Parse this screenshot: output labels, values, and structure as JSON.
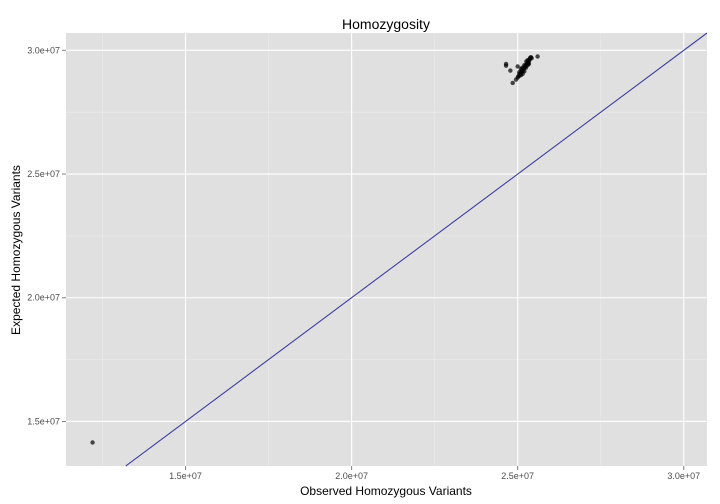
{
  "chart_data": {
    "type": "scatter",
    "title": "Homozygosity",
    "xlabel": "Observed Homozygous Variants",
    "ylabel": "Expected Homozygous Variants",
    "xlim": [
      11400000,
      30700000
    ],
    "ylim": [
      13200000,
      30700000
    ],
    "x_ticks": [
      {
        "value": 15000000,
        "label": "1.5e+07"
      },
      {
        "value": 20000000,
        "label": "2.0e+07"
      },
      {
        "value": 25000000,
        "label": "2.5e+07"
      },
      {
        "value": 30000000,
        "label": "3.0e+07"
      }
    ],
    "y_ticks": [
      {
        "value": 15000000,
        "label": "1.5e+07"
      },
      {
        "value": 20000000,
        "label": "2.0e+07"
      },
      {
        "value": 25000000,
        "label": "2.5e+07"
      },
      {
        "value": 30000000,
        "label": "3.0e+07"
      }
    ],
    "grid": true,
    "reference_line": {
      "type": "identity",
      "slope": 1,
      "intercept": 0,
      "color": "#3f3f9f"
    },
    "colors": {
      "panel": "#e0e0e0",
      "grid_major": "#ffffff",
      "grid_minor": "#ebebeb",
      "point": "#000000"
    },
    "points": [
      {
        "x": 12200000,
        "y": 14150000
      },
      {
        "x": 24650000,
        "y": 29450000
      },
      {
        "x": 24650000,
        "y": 29380000
      },
      {
        "x": 24780000,
        "y": 29180000
      },
      {
        "x": 24850000,
        "y": 28680000
      },
      {
        "x": 24950000,
        "y": 28820000
      },
      {
        "x": 25000000,
        "y": 28900000
      },
      {
        "x": 25050000,
        "y": 29050000
      },
      {
        "x": 25000000,
        "y": 29350000
      },
      {
        "x": 25100000,
        "y": 29000000
      },
      {
        "x": 25150000,
        "y": 29150000
      },
      {
        "x": 25100000,
        "y": 29250000
      },
      {
        "x": 25200000,
        "y": 29300000
      },
      {
        "x": 25150000,
        "y": 29050000
      },
      {
        "x": 25250000,
        "y": 29400000
      },
      {
        "x": 25200000,
        "y": 29150000
      },
      {
        "x": 25300000,
        "y": 29500000
      },
      {
        "x": 25250000,
        "y": 29300000
      },
      {
        "x": 25350000,
        "y": 29600000
      },
      {
        "x": 25300000,
        "y": 29400000
      },
      {
        "x": 25380000,
        "y": 29700000
      },
      {
        "x": 25330000,
        "y": 29550000
      },
      {
        "x": 25050000,
        "y": 29120000
      },
      {
        "x": 25120000,
        "y": 29200000
      },
      {
        "x": 25180000,
        "y": 29250000
      },
      {
        "x": 25220000,
        "y": 29350000
      },
      {
        "x": 25280000,
        "y": 29450000
      },
      {
        "x": 25320000,
        "y": 29500000
      },
      {
        "x": 25360000,
        "y": 29650000
      },
      {
        "x": 25400000,
        "y": 29720000
      },
      {
        "x": 25420000,
        "y": 29680000
      },
      {
        "x": 25260000,
        "y": 29550000
      },
      {
        "x": 25140000,
        "y": 29300000
      },
      {
        "x": 25060000,
        "y": 28980000
      },
      {
        "x": 25100000,
        "y": 29100000
      },
      {
        "x": 25200000,
        "y": 29400000
      },
      {
        "x": 25300000,
        "y": 29600000
      },
      {
        "x": 25340000,
        "y": 29450000
      },
      {
        "x": 25600000,
        "y": 29750000
      },
      {
        "x": 25020000,
        "y": 28950000
      }
    ]
  }
}
